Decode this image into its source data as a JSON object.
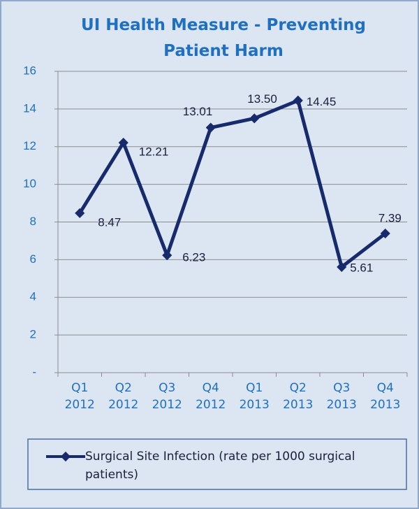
{
  "chart_data": {
    "type": "line",
    "title": "UI Health Measure - Preventing Patient Harm",
    "categories": [
      "Q1 2012",
      "Q2 2012",
      "Q3 2012",
      "Q4 2012",
      "Q1 2013",
      "Q2 2013",
      "Q3 2013",
      "Q4 2013"
    ],
    "series": [
      {
        "name": "Surgical Site Infection (rate per 1000 surgical patients)",
        "color": "#172a6b",
        "values": [
          8.47,
          12.21,
          6.23,
          13.01,
          13.5,
          14.45,
          5.61,
          7.39
        ],
        "value_labels": [
          "8.47",
          "12.21",
          "6.23",
          "13.01",
          "13.50",
          "14.45",
          "5.61",
          "7.39"
        ]
      }
    ],
    "ylim": [
      0,
      16
    ],
    "yticks": [
      {
        "value": 0,
        "label": "-"
      },
      2,
      4,
      6,
      8,
      10,
      12,
      14,
      16
    ],
    "grid": true,
    "legend": "bottom"
  }
}
